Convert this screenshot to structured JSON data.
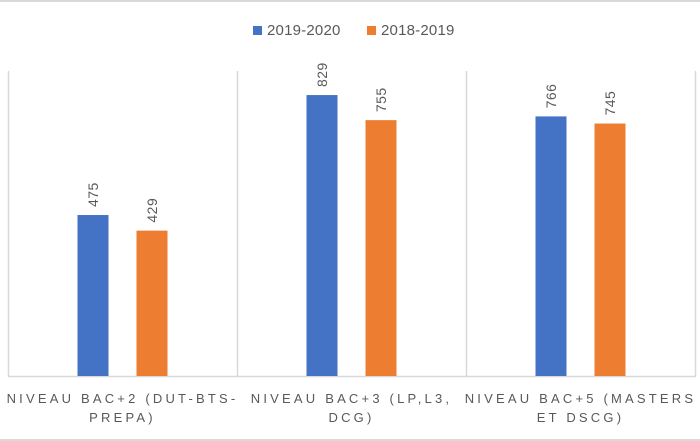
{
  "chart_data": {
    "type": "bar",
    "title": "",
    "xlabel": "",
    "ylabel": "",
    "ylim": [
      0,
      900
    ],
    "grid": false,
    "legend_position": "top-center",
    "categories": [
      "NIVEAU BAC+2 (DUT-BTS-PREPA)",
      "NIVEAU BAC+3 (LP,L3, DCG)",
      "NIVEAU BAC+5 (MASTERS ET DSCG)"
    ],
    "category_lines": [
      [
        "NIVEAU BAC+2 (DUT-BTS-",
        "PREPA)"
      ],
      [
        "NIVEAU BAC+3 (LP,L3,",
        "DCG)"
      ],
      [
        "NIVEAU BAC+5 (MASTERS",
        "ET DSCG)"
      ]
    ],
    "series": [
      {
        "name": "2019-2020",
        "color": "#4472c4",
        "values": [
          475,
          829,
          766
        ]
      },
      {
        "name": "2018-2019",
        "color": "#ed7d31",
        "values": [
          429,
          755,
          745
        ]
      }
    ],
    "data_labels": true
  }
}
